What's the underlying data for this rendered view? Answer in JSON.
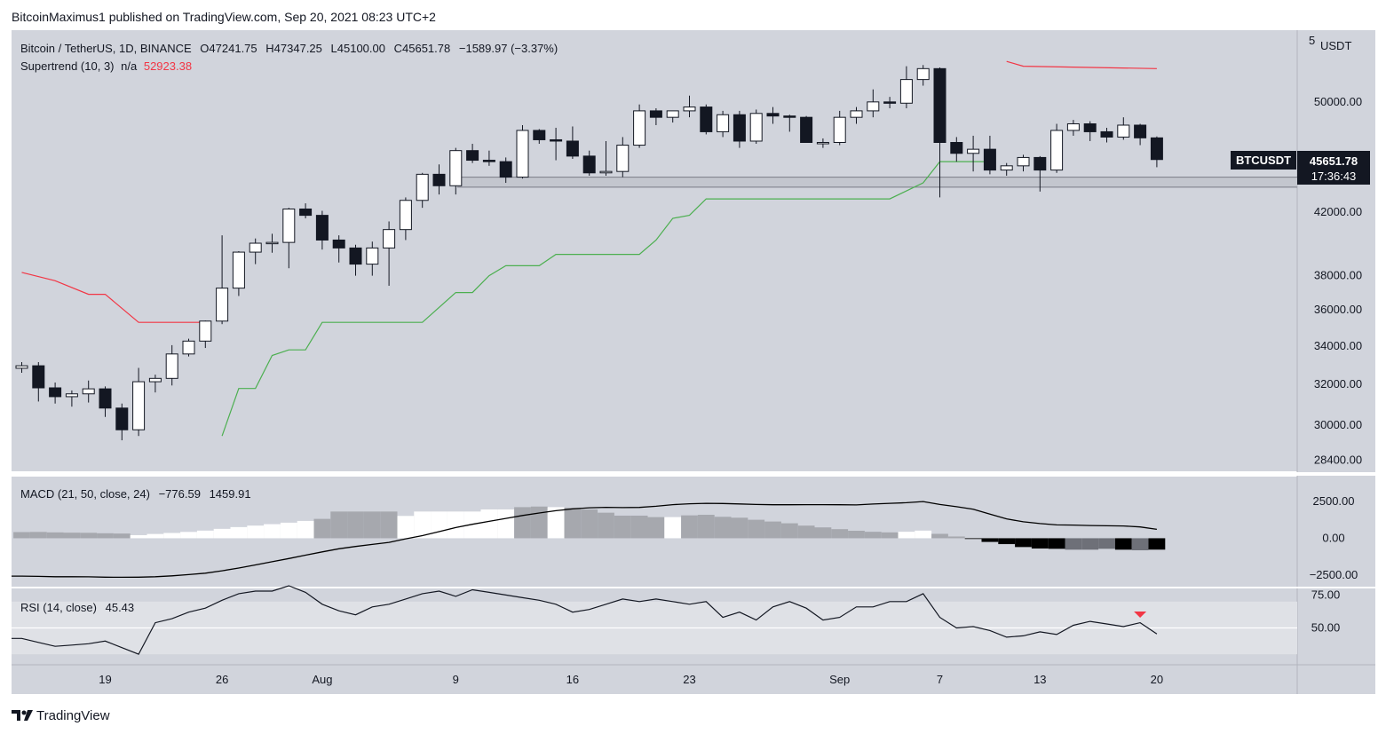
{
  "header": {
    "publisher": "BitcoinMaximus1 published on TradingView.com, Sep 20, 2021 08:23 UTC+2"
  },
  "footer": {
    "brand": "TradingView",
    "logo_icon": "tradingview-logo-icon"
  },
  "colors": {
    "panel_bg": "#d1d4dc",
    "candle_up": "#ffffff",
    "candle_down": "#131722",
    "supertrend_up": "#4caf50",
    "supertrend_down": "#f23645",
    "rsi_band": "#dfe1e6",
    "macd_hist_light": "#ffffff",
    "macd_hist_gray": "#a6a8ae",
    "macd_hist_dark_gray": "#6e7078",
    "macd_hist_black": "#000000",
    "signal_arrow": "#f23645"
  },
  "legend": {
    "symbol": "Bitcoin / TetherUS, 1D, BINANCE",
    "o_label": "O",
    "o_value": "47241.75",
    "h_label": "H",
    "h_value": "47347.25",
    "l_label": "L",
    "l_value": "45100.00",
    "c_label": "C",
    "c_value": "45651.78",
    "change": "−1589.97 (−3.37%)",
    "supertrend_label": "Supertrend (10, 3)",
    "supertrend_na": "n/a",
    "supertrend_value": "52923.38",
    "macd_label": "MACD (21, 50, close, 24)",
    "macd_value1": "−776.59",
    "macd_value2": "1459.91",
    "rsi_label": "RSI (14, close)",
    "rsi_value": "45.43"
  },
  "price_badge": {
    "symbol": "BTCUSDT",
    "price": "45651.78",
    "countdown": "17:36:43"
  },
  "chart_data": {
    "type": "candlestick",
    "symbol": "BTCUSDT",
    "currency_label": "USDT",
    "currency_prefix": "5",
    "price_axis_labels": [
      "50000.00",
      "42000.00",
      "38000.00",
      "36000.00",
      "34000.00",
      "32000.00",
      "30000.00",
      "28400.00"
    ],
    "price_axis_values": [
      50000,
      42000,
      38000,
      36000,
      34000,
      32000,
      30000,
      28400
    ],
    "price_scale": "log",
    "price_range": [
      27900,
      56000
    ],
    "x_labels": [
      {
        "text": "19",
        "i": 5
      },
      {
        "text": "26",
        "i": 12
      },
      {
        "text": "Aug",
        "i": 18
      },
      {
        "text": "9",
        "i": 26
      },
      {
        "text": "16",
        "i": 33
      },
      {
        "text": "23",
        "i": 40
      },
      {
        "text": "Sep",
        "i": 49
      },
      {
        "text": "7",
        "i": 55
      },
      {
        "text": "13",
        "i": 61
      },
      {
        "text": "20",
        "i": 68
      }
    ],
    "candles": [
      [
        32830,
        33150,
        32600,
        32960
      ],
      [
        32960,
        33150,
        31150,
        31830
      ],
      [
        31830,
        32100,
        31050,
        31390
      ],
      [
        31390,
        31700,
        30900,
        31530
      ],
      [
        31530,
        32200,
        31100,
        31780
      ],
      [
        31780,
        31900,
        30400,
        30830
      ],
      [
        30830,
        31050,
        29300,
        29790
      ],
      [
        29790,
        32850,
        29500,
        32140
      ],
      [
        32140,
        32500,
        31600,
        32310
      ],
      [
        32310,
        34050,
        31950,
        33580
      ],
      [
        33580,
        34400,
        33450,
        34270
      ],
      [
        34270,
        35400,
        33900,
        35370
      ],
      [
        35370,
        40500,
        35200,
        37260
      ],
      [
        37260,
        39500,
        36800,
        39440
      ],
      [
        39440,
        40300,
        38700,
        40000
      ],
      [
        40000,
        40600,
        39400,
        40050
      ],
      [
        40050,
        42300,
        38450,
        42220
      ],
      [
        42220,
        42600,
        41600,
        41800
      ],
      [
        41800,
        42100,
        39600,
        40200
      ],
      [
        40200,
        40500,
        38800,
        39700
      ],
      [
        39700,
        39900,
        38000,
        38700
      ],
      [
        38700,
        40100,
        38000,
        39700
      ],
      [
        39700,
        41400,
        37400,
        40870
      ],
      [
        40870,
        43000,
        40200,
        42800
      ],
      [
        42800,
        44700,
        42300,
        44600
      ],
      [
        44600,
        45300,
        43200,
        43800
      ],
      [
        43800,
        46500,
        43200,
        46300
      ],
      [
        46300,
        46800,
        45400,
        45600
      ],
      [
        45600,
        46300,
        45200,
        45500
      ],
      [
        45500,
        45800,
        44000,
        44400
      ],
      [
        44400,
        48200,
        44300,
        47800
      ],
      [
        47800,
        47900,
        46800,
        47100
      ],
      [
        47100,
        48000,
        45600,
        47000
      ],
      [
        47000,
        48100,
        45700,
        45900
      ],
      [
        45900,
        46300,
        44500,
        44700
      ],
      [
        44700,
        47000,
        44500,
        44800
      ],
      [
        44800,
        47300,
        44400,
        46700
      ],
      [
        46700,
        49800,
        46500,
        49300
      ],
      [
        49300,
        49500,
        48200,
        48800
      ],
      [
        48800,
        49300,
        48400,
        49300
      ],
      [
        49300,
        50500,
        48800,
        49600
      ],
      [
        49600,
        49800,
        47500,
        47700
      ],
      [
        47700,
        49300,
        47300,
        49000
      ],
      [
        49000,
        49300,
        46500,
        47000
      ],
      [
        47000,
        49400,
        46800,
        49100
      ],
      [
        49100,
        49600,
        48300,
        48900
      ],
      [
        48900,
        49000,
        47700,
        48800
      ],
      [
        48800,
        48900,
        46900,
        46900
      ],
      [
        46900,
        47200,
        46500,
        46900
      ],
      [
        46900,
        49300,
        46700,
        48800
      ],
      [
        48800,
        49600,
        48300,
        49300
      ],
      [
        49300,
        51000,
        48800,
        50000
      ],
      [
        50000,
        50400,
        49500,
        49900
      ],
      [
        49900,
        52900,
        49500,
        51800
      ],
      [
        51800,
        53000,
        51300,
        52700
      ],
      [
        52700,
        52800,
        43000,
        46900
      ],
      [
        46900,
        47300,
        45500,
        46100
      ],
      [
        46100,
        47400,
        44800,
        46400
      ],
      [
        46400,
        47400,
        44600,
        44900
      ],
      [
        44900,
        45400,
        44500,
        45200
      ],
      [
        45200,
        46000,
        44800,
        45800
      ],
      [
        45800,
        45900,
        43400,
        44900
      ],
      [
        44900,
        48300,
        44700,
        47800
      ],
      [
        47800,
        48600,
        47400,
        48300
      ],
      [
        48300,
        48500,
        47000,
        47700
      ],
      [
        47700,
        48000,
        46900,
        47300
      ],
      [
        47300,
        48800,
        47100,
        48200
      ],
      [
        48200,
        48300,
        46700,
        47241
      ],
      [
        47241.75,
        47347.25,
        45100.0,
        45651.78
      ]
    ],
    "supertrend": {
      "red_segments": [
        [
          [
            0,
            38200
          ],
          [
            2,
            37700
          ],
          [
            4,
            36900
          ],
          [
            5,
            36900
          ],
          [
            7,
            35300
          ],
          [
            11,
            35300
          ]
        ],
        [
          [
            59,
            53300
          ],
          [
            60,
            52900
          ],
          [
            68,
            52700
          ]
        ]
      ],
      "green_segments": [
        [
          [
            12,
            29500
          ],
          [
            13,
            31800
          ],
          [
            14,
            31800
          ],
          [
            15,
            33500
          ],
          [
            16,
            33800
          ],
          [
            17,
            33800
          ],
          [
            18,
            35300
          ],
          [
            24,
            35300
          ],
          [
            26,
            37000
          ],
          [
            27,
            37000
          ],
          [
            28,
            38000
          ],
          [
            29,
            38600
          ],
          [
            31,
            38600
          ],
          [
            32,
            39300
          ],
          [
            37,
            39300
          ],
          [
            38,
            40200
          ],
          [
            39,
            41600
          ],
          [
            40,
            41800
          ],
          [
            41,
            42900
          ],
          [
            52,
            42900
          ],
          [
            54,
            44000
          ],
          [
            55,
            45500
          ],
          [
            58,
            45500
          ]
        ]
      ]
    },
    "support_zone": [
      43700,
      44400
    ],
    "macd": {
      "axis_labels": [
        "2500.00",
        "0.00",
        "−2500.00"
      ],
      "axis_values": [
        2500,
        0,
        -2500
      ],
      "range": [
        -3300,
        4200
      ],
      "line": [
        -2580,
        -2600,
        -2620,
        -2620,
        -2630,
        -2650,
        -2660,
        -2650,
        -2620,
        -2560,
        -2480,
        -2380,
        -2220,
        -2030,
        -1820,
        -1600,
        -1380,
        -1150,
        -930,
        -720,
        -560,
        -420,
        -280,
        -40,
        180,
        450,
        730,
        950,
        1150,
        1350,
        1550,
        1720,
        1880,
        2000,
        2080,
        2110,
        2090,
        2100,
        2180,
        2290,
        2350,
        2380,
        2370,
        2340,
        2300,
        2280,
        2280,
        2290,
        2290,
        2280,
        2270,
        2330,
        2380,
        2420,
        2500,
        2300,
        2150,
        1980,
        1650,
        1320,
        1120,
        1000,
        910,
        900,
        870,
        850,
        840,
        770,
        610
      ],
      "histogram": [
        420,
        430,
        400,
        380,
        370,
        340,
        320,
        210,
        290,
        360,
        430,
        520,
        640,
        760,
        860,
        960,
        1060,
        1180,
        1320,
        1820,
        1820,
        1820,
        1820,
        1520,
        1820,
        1820,
        1820,
        1820,
        1960,
        1960,
        2120,
        2160,
        2120,
        2080,
        1960,
        1740,
        1540,
        1540,
        1440,
        1440,
        1560,
        1600,
        1460,
        1400,
        1260,
        1140,
        1020,
        860,
        740,
        620,
        510,
        440,
        400,
        440,
        520,
        300,
        120,
        -50,
        -250,
        -400,
        -600,
        -700,
        -720,
        -780,
        -780,
        -720,
        -780,
        -820,
        -776.59
      ],
      "hist_color_keys": [
        "g",
        "g",
        "g",
        "g",
        "g",
        "g",
        "g",
        "w",
        "w",
        "w",
        "w",
        "w",
        "w",
        "w",
        "w",
        "w",
        "w",
        "w",
        "g",
        "g",
        "g",
        "g",
        "g",
        "w",
        "w",
        "w",
        "w",
        "w",
        "w",
        "w",
        "g",
        "g",
        "w",
        "g",
        "g",
        "g",
        "g",
        "g",
        "g",
        "w",
        "g",
        "g",
        "g",
        "g",
        "g",
        "g",
        "g",
        "g",
        "g",
        "g",
        "g",
        "g",
        "g",
        "w",
        "w",
        "g",
        "g",
        "b",
        "b",
        "b",
        "b",
        "b",
        "b",
        "d",
        "d",
        "d",
        "b",
        "d",
        "b"
      ]
    },
    "rsi": {
      "axis_labels": [
        "75.00",
        "50.00"
      ],
      "axis_values": [
        75,
        50
      ],
      "range": [
        22,
        80
      ],
      "band": [
        30,
        70
      ],
      "line": [
        42,
        39,
        36,
        37,
        38,
        40,
        35,
        30,
        54,
        57,
        62,
        65,
        71,
        76,
        78,
        78,
        82,
        77,
        68,
        63,
        60,
        66,
        68,
        72,
        76,
        78,
        74,
        79,
        77,
        75,
        73,
        71,
        68,
        62,
        64,
        68,
        72,
        70,
        72,
        70,
        68,
        70,
        58,
        62,
        56,
        66,
        70,
        65,
        56,
        58,
        66,
        66,
        70,
        70,
        76,
        58,
        50,
        51,
        48,
        43,
        44,
        47,
        45,
        52,
        55,
        53,
        51,
        54,
        45.43
      ],
      "signal_arrow_index": 67
    }
  }
}
